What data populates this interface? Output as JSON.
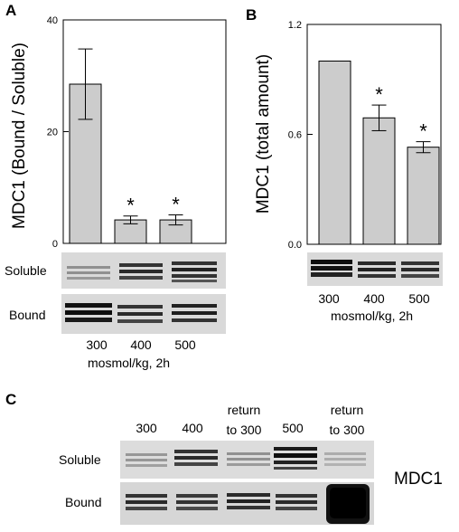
{
  "panels": {
    "a": {
      "letter": "A",
      "xlabel": "mosmol/kg, 2h",
      "blot_rows": [
        "Soluble",
        "Bound"
      ]
    },
    "b": {
      "letter": "B",
      "xlabel": "mosmol/kg, 2h",
      "blot_rows": []
    },
    "c": {
      "letter": "C",
      "lanes": [
        "300",
        "400",
        "return to 300",
        "500",
        "return to 300"
      ],
      "lane_lines": [
        [
          "300"
        ],
        [
          "400"
        ],
        [
          "return",
          "to 300"
        ],
        [
          "500"
        ],
        [
          "return",
          "to 300"
        ]
      ],
      "blot_rows": [
        "Soluble",
        "Bound"
      ],
      "protein": "MDC1"
    }
  },
  "chart_data": [
    {
      "type": "bar",
      "panel": "A",
      "categories": [
        "300",
        "400",
        "500"
      ],
      "values": [
        28.5,
        4.2,
        4.2
      ],
      "errors": [
        6.3,
        0.7,
        0.9
      ],
      "significant": [
        "",
        "*",
        "*"
      ],
      "ylabel": "MDC1 (Bound / Soluble)",
      "xlabel": "mosmol/kg, 2h",
      "ylim": [
        0,
        40
      ],
      "yticks": [
        "0",
        "20",
        "40"
      ],
      "bar_color": "#cccccc"
    },
    {
      "type": "bar",
      "panel": "B",
      "categories": [
        "300",
        "400",
        "500"
      ],
      "values": [
        1.0,
        0.69,
        0.53
      ],
      "errors": [
        0,
        0.07,
        0.03
      ],
      "significant": [
        "",
        "*",
        "*"
      ],
      "ylabel": "MDC1 (total amount)",
      "xlabel": "mosmol/kg, 2h",
      "ylim": [
        0,
        1.2
      ],
      "yticks": [
        "0.0",
        "0.6",
        "1.2"
      ],
      "bar_color": "#cccccc"
    }
  ]
}
